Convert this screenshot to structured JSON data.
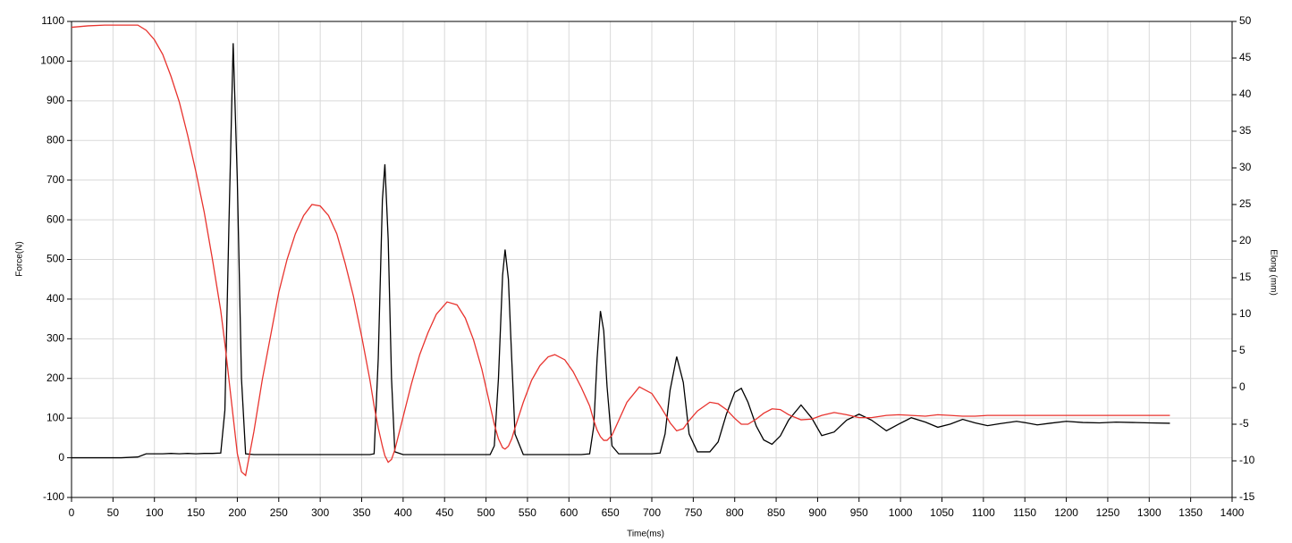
{
  "chart_data": {
    "type": "line",
    "xlabel": "Time(ms)",
    "ylabel": "Force(N)",
    "y2label": "Elong (mm)",
    "x": [
      0,
      20,
      40,
      60,
      80,
      90,
      100,
      110,
      120,
      130,
      140,
      150,
      160,
      170,
      180,
      185,
      190,
      195,
      200,
      205,
      210,
      220,
      230,
      240,
      250,
      260,
      270,
      280,
      290,
      300,
      310,
      320,
      330,
      340,
      350,
      360,
      365,
      370,
      375,
      378,
      382,
      386,
      390,
      400,
      410,
      420,
      430,
      440,
      453,
      465,
      475,
      485,
      495,
      505,
      510,
      515,
      520,
      523,
      527,
      531,
      535,
      545,
      555,
      565,
      575,
      583,
      595,
      605,
      615,
      625,
      630,
      634,
      638,
      642,
      646,
      652,
      660,
      670,
      685,
      700,
      710,
      716,
      722,
      730,
      738,
      745,
      755,
      770,
      780,
      790,
      800,
      808,
      816,
      826,
      835,
      845,
      855,
      865,
      880,
      893,
      905,
      920,
      935,
      950,
      965,
      983,
      998,
      1013,
      1030,
      1045,
      1060,
      1075,
      1090,
      1105,
      1120,
      1140,
      1152,
      1165,
      1180,
      1200,
      1220,
      1240,
      1260,
      1280,
      1300,
      1325
    ],
    "series": [
      {
        "name": "Force",
        "color": "#000000",
        "axis": "y",
        "values": [
          0,
          0,
          0,
          0,
          2,
          10,
          10,
          10,
          11,
          10,
          11,
          10,
          11,
          11,
          12,
          120,
          600,
          1045,
          700,
          200,
          10,
          8,
          8,
          8,
          8,
          8,
          8,
          8,
          8,
          8,
          8,
          8,
          8,
          8,
          8,
          8,
          10,
          250,
          650,
          740,
          550,
          200,
          15,
          8,
          8,
          8,
          8,
          8,
          8,
          8,
          8,
          8,
          8,
          8,
          30,
          200,
          460,
          525,
          450,
          250,
          60,
          8,
          8,
          8,
          8,
          8,
          8,
          8,
          8,
          10,
          80,
          250,
          370,
          320,
          180,
          30,
          10,
          10,
          10,
          10,
          12,
          60,
          170,
          255,
          190,
          60,
          15,
          15,
          40,
          110,
          165,
          175,
          140,
          80,
          45,
          34,
          55,
          95,
          133,
          100,
          56,
          65,
          95,
          110,
          95,
          68,
          85,
          101,
          90,
          77,
          85,
          97,
          88,
          81,
          86,
          92,
          88,
          83,
          87,
          92,
          89,
          88,
          90,
          89,
          88,
          87
        ]
      },
      {
        "name": "Elong",
        "color": "#e8332e",
        "axis": "y2",
        "values": [
          49.2,
          49.4,
          49.5,
          49.5,
          49.5,
          48.8,
          47.5,
          45.5,
          42.5,
          39,
          34.5,
          29.5,
          24,
          17.5,
          10.5,
          6,
          1,
          -4,
          -9,
          -11.5,
          -12,
          -6,
          1,
          7,
          13,
          17.5,
          21,
          23.5,
          25,
          24.8,
          23.5,
          21,
          17,
          12.5,
          7,
          1,
          -2.5,
          -5.5,
          -8,
          -9.3,
          -10.2,
          -9.8,
          -8.5,
          -4,
          0.5,
          4.5,
          7.5,
          10,
          11.7,
          11.3,
          9.5,
          6.5,
          2.5,
          -2.5,
          -5,
          -7,
          -8.2,
          -8.4,
          -8,
          -7,
          -5.5,
          -2,
          1,
          3,
          4.2,
          4.5,
          3.8,
          2.2,
          0,
          -2.5,
          -4.5,
          -5.8,
          -6.7,
          -7.2,
          -7.2,
          -6.5,
          -4.5,
          -2,
          0.1,
          -0.8,
          -2.5,
          -3.6,
          -4.8,
          -5.9,
          -5.6,
          -4.5,
          -3.2,
          -2,
          -2.2,
          -3,
          -4.2,
          -5,
          -5,
          -4.3,
          -3.5,
          -2.9,
          -3,
          -3.7,
          -4.4,
          -4.3,
          -3.8,
          -3.4,
          -3.7,
          -4.1,
          -4.1,
          -3.8,
          -3.7,
          -3.8,
          -3.9,
          -3.7,
          -3.8,
          -3.9,
          -3.9,
          -3.8,
          -3.8,
          -3.8,
          -3.8,
          -3.8,
          -3.8,
          -3.8,
          -3.8,
          -3.8,
          -3.8,
          -3.8,
          -3.8,
          -3.8
        ]
      }
    ],
    "xlim": [
      0,
      1400
    ],
    "xticks": [
      0,
      50,
      100,
      150,
      200,
      250,
      300,
      350,
      400,
      450,
      500,
      550,
      600,
      650,
      700,
      750,
      800,
      850,
      900,
      950,
      1000,
      1050,
      1100,
      1150,
      1200,
      1250,
      1300,
      1350,
      1400
    ],
    "ylim": [
      -100,
      1100
    ],
    "yticks": [
      -100,
      0,
      100,
      200,
      300,
      400,
      500,
      600,
      700,
      800,
      900,
      1000,
      1100
    ],
    "y2lim": [
      -15,
      50
    ],
    "y2ticks": [
      -15,
      -10,
      -5,
      0,
      5,
      10,
      15,
      20,
      25,
      30,
      35,
      40,
      45,
      50
    ],
    "grid": true
  }
}
